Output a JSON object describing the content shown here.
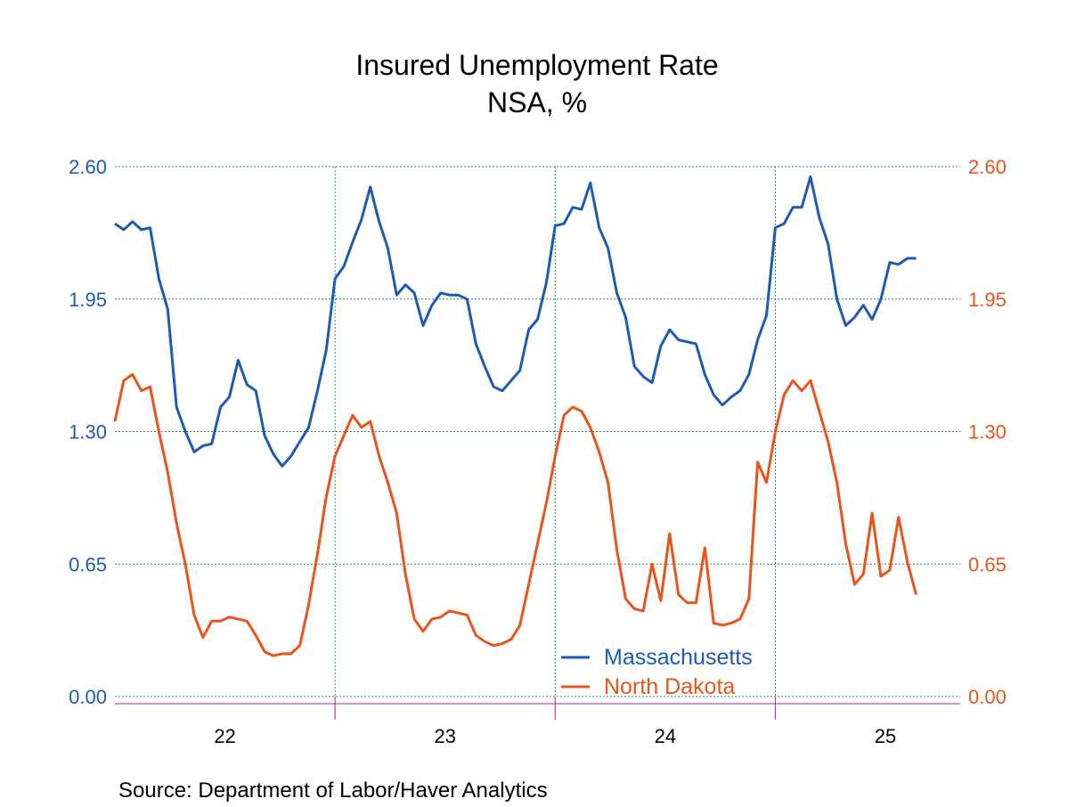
{
  "chart_data": {
    "type": "line",
    "title": "Insured Unemployment Rate",
    "subtitle": "NSA, %",
    "source": "Source:  Department of Labor/Haver Analytics",
    "x": [
      2022.0,
      2022.04,
      2022.08,
      2022.12,
      2022.16,
      2022.2,
      2022.24,
      2022.28,
      2022.32,
      2022.36,
      2022.4,
      2022.44,
      2022.48,
      2022.52,
      2022.56,
      2022.6,
      2022.64,
      2022.68,
      2022.72,
      2022.76,
      2022.8,
      2022.84,
      2022.88,
      2022.92,
      2022.96,
      2023.0,
      2023.04,
      2023.08,
      2023.12,
      2023.16,
      2023.2,
      2023.24,
      2023.28,
      2023.32,
      2023.36,
      2023.4,
      2023.44,
      2023.48,
      2023.52,
      2023.56,
      2023.6,
      2023.64,
      2023.68,
      2023.72,
      2023.76,
      2023.8,
      2023.84,
      2023.88,
      2023.92,
      2023.96,
      2024.0,
      2024.04,
      2024.08,
      2024.12,
      2024.16,
      2024.2,
      2024.24,
      2024.28,
      2024.32,
      2024.36,
      2024.4,
      2024.44,
      2024.48,
      2024.52,
      2024.56,
      2024.6,
      2024.64,
      2024.68,
      2024.72,
      2024.76,
      2024.8,
      2024.84,
      2024.88,
      2024.92,
      2024.96,
      2025.0,
      2025.04,
      2025.08,
      2025.12,
      2025.16,
      2025.2,
      2025.24,
      2025.28,
      2025.32,
      2025.36,
      2025.4,
      2025.44,
      2025.48,
      2025.52,
      2025.56,
      2025.6,
      2025.64
    ],
    "series": [
      {
        "name": "Massachusetts",
        "color": "#1c5bb5",
        "values": [
          2.32,
          2.29,
          2.33,
          2.29,
          2.3,
          2.05,
          1.9,
          1.42,
          1.3,
          1.2,
          1.23,
          1.24,
          1.42,
          1.47,
          1.65,
          1.53,
          1.5,
          1.28,
          1.19,
          1.13,
          1.18,
          1.25,
          1.32,
          1.5,
          1.7,
          2.05,
          2.11,
          2.23,
          2.34,
          2.5,
          2.33,
          2.2,
          1.97,
          2.02,
          1.98,
          1.82,
          1.92,
          1.98,
          1.97,
          1.97,
          1.95,
          1.73,
          1.62,
          1.52,
          1.5,
          1.55,
          1.6,
          1.8,
          1.85,
          2.03,
          2.31,
          2.32,
          2.4,
          2.39,
          2.52,
          2.3,
          2.2,
          1.98,
          1.86,
          1.62,
          1.57,
          1.54,
          1.72,
          1.8,
          1.75,
          1.74,
          1.73,
          1.58,
          1.48,
          1.43,
          1.47,
          1.5,
          1.58,
          1.75,
          1.87,
          2.3,
          2.32,
          2.4,
          2.4,
          2.55,
          2.35,
          2.22,
          1.95,
          1.82,
          1.86,
          1.92,
          1.85,
          1.95,
          2.13,
          2.12,
          2.15,
          2.15
        ]
      },
      {
        "name": "North Dakota",
        "color": "#e8541a",
        "axis": "y2",
        "values": [
          1.35,
          1.55,
          1.58,
          1.5,
          1.52,
          1.3,
          1.1,
          0.85,
          0.65,
          0.4,
          0.29,
          0.37,
          0.37,
          0.39,
          0.38,
          0.37,
          0.3,
          0.22,
          0.2,
          0.21,
          0.21,
          0.25,
          0.45,
          0.7,
          0.98,
          1.18,
          1.28,
          1.38,
          1.32,
          1.35,
          1.18,
          1.05,
          0.9,
          0.6,
          0.38,
          0.32,
          0.38,
          0.39,
          0.42,
          0.41,
          0.4,
          0.3,
          0.27,
          0.25,
          0.26,
          0.28,
          0.35,
          0.55,
          0.75,
          0.95,
          1.18,
          1.38,
          1.42,
          1.4,
          1.32,
          1.2,
          1.05,
          0.72,
          0.48,
          0.43,
          0.42,
          0.65,
          0.47,
          0.8,
          0.5,
          0.46,
          0.46,
          0.73,
          0.36,
          0.35,
          0.36,
          0.38,
          0.48,
          1.15,
          1.05,
          1.3,
          1.48,
          1.55,
          1.5,
          1.55,
          1.4,
          1.25,
          1.05,
          0.75,
          0.55,
          0.6,
          0.9,
          0.59,
          0.62,
          0.88,
          0.66,
          0.5
        ]
      }
    ],
    "xlim": [
      2022,
      2025.84
    ],
    "xticks": [
      {
        "value": 2022.5,
        "label": "22"
      },
      {
        "value": 2023.5,
        "label": "23"
      },
      {
        "value": 2024.5,
        "label": "24"
      },
      {
        "value": 2025.5,
        "label": "25"
      }
    ],
    "xgrid": [
      2023,
      2024,
      2025
    ],
    "ylim": [
      0,
      2.6
    ],
    "yticks": [
      {
        "value": 0,
        "label": "0.00"
      },
      {
        "value": 0.65,
        "label": "0.65"
      },
      {
        "value": 1.3,
        "label": "1.30"
      },
      {
        "value": 1.95,
        "label": "1.95"
      },
      {
        "value": 2.6,
        "label": "2.60"
      }
    ],
    "y2lim": [
      0,
      2.6
    ],
    "y2ticks": [
      {
        "value": 0,
        "label": "0.00"
      },
      {
        "value": 0.65,
        "label": "0.65"
      },
      {
        "value": 1.3,
        "label": "1.30"
      },
      {
        "value": 1.95,
        "label": "1.95"
      },
      {
        "value": 2.6,
        "label": "2.60"
      }
    ],
    "grid": true,
    "legend": "bottom"
  }
}
